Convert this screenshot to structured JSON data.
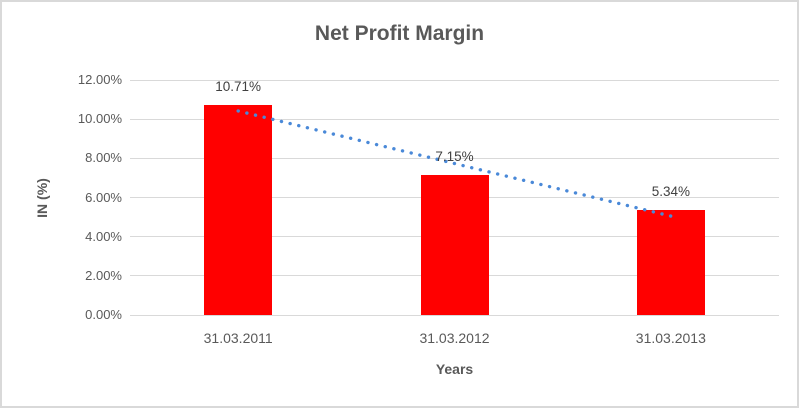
{
  "chart_data": {
    "type": "bar",
    "title": "Net Profit Margin",
    "xlabel": "Years",
    "ylabel": "IN (%)",
    "categories": [
      "31.03.2011",
      "31.03.2012",
      "31.03.2013"
    ],
    "values": [
      10.71,
      7.15,
      5.34
    ],
    "data_labels": [
      "10.71%",
      "7.15%",
      "5.34%"
    ],
    "ylim": [
      0,
      12
    ],
    "ytick_step": 2,
    "ytick_labels": [
      "0.00%",
      "2.00%",
      "4.00%",
      "6.00%",
      "8.00%",
      "10.00%",
      "12.00%"
    ],
    "grid": true,
    "legend": "none",
    "bar_color": "#ff0000",
    "trendline": {
      "type": "linear",
      "style": "dotted",
      "color": "#4a89d8",
      "start_value": 10.42,
      "end_value": 5.05
    }
  },
  "colors": {
    "title_text": "#595959",
    "axis_text": "#595959",
    "data_label_text": "#404040",
    "gridline": "#d9d9d9",
    "chart_border": "#d9d9d9",
    "background": "#ffffff"
  }
}
